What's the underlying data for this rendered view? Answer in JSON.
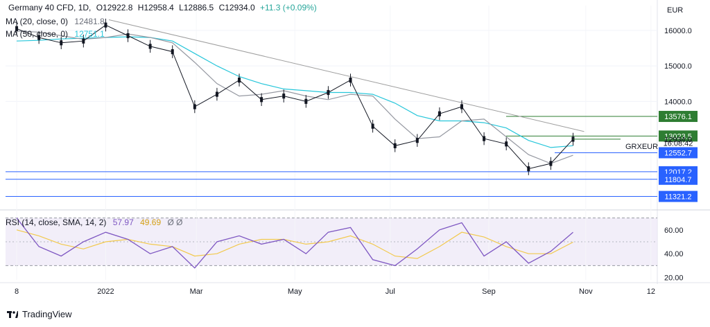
{
  "header": {
    "symbol": "Germany 40 CFD, 1D,",
    "ohlc": [
      "O12922.8",
      "H12958.4",
      "L12886.5",
      "C12934.0",
      "+11.3 (+0.09%)"
    ],
    "ma20_label": "MA (20, close, 0)",
    "ma20_value": "12481.8",
    "ma50_label": "MA (50, close, 0)",
    "ma50_value": "12751.1"
  },
  "currency": "EUR",
  "colors": {
    "up": "#26a69a",
    "down": "#ef5350",
    "candle": "#131722",
    "ma20": "#9598a1",
    "ma50": "#26c6da",
    "trend": "#9e9e9e",
    "support": "#2962ff",
    "resistance": "#2e7d32",
    "rsi": "#7e57c2",
    "rsi_ma": "#f2c94c"
  },
  "price_labels": [
    {
      "text": "13576.1",
      "value": 13576.1,
      "kind": "resistance"
    },
    {
      "text": "13023.5",
      "value": 13023.5,
      "kind": "resistance"
    },
    {
      "text": "12934.0",
      "value": 12934.0,
      "kind": "last"
    },
    {
      "text": "16:08:42",
      "value": 12830.0,
      "kind": "countdown"
    },
    {
      "text": "12552.7",
      "value": 12552.7,
      "kind": "support"
    },
    {
      "text": "12017.2",
      "value": 12017.2,
      "kind": "support"
    },
    {
      "text": "11804.7",
      "value": 11804.7,
      "kind": "support"
    },
    {
      "text": "11321.2",
      "value": 11321.2,
      "kind": "support"
    }
  ],
  "symbol_tag": "GRXEUR",
  "rsi_header": {
    "label": "RSI (14, close, SMA, 14, 2)",
    "value": "57.97",
    "ma_value": "49.69",
    "extra": "Ø Ø"
  },
  "footer": {
    "brand": "TradingView"
  },
  "chart_data": [
    {
      "type": "line",
      "title": "Germany 40 CFD, 1D",
      "ylabel": "EUR",
      "y_ticks": [
        14000.0,
        15000.0,
        16000.0
      ],
      "ylim": [
        11000,
        16700
      ],
      "x_tick_labels": [
        "8",
        "2022",
        "Mar",
        "May",
        "Jul",
        "Sep",
        "Nov",
        "12"
      ],
      "x": [
        "2021-11-08",
        "2021-11-22",
        "2021-12-06",
        "2021-12-20",
        "2022-01-03",
        "2022-01-17",
        "2022-01-31",
        "2022-02-14",
        "2022-02-28",
        "2022-03-14",
        "2022-03-28",
        "2022-04-11",
        "2022-04-25",
        "2022-05-09",
        "2022-05-23",
        "2022-06-06",
        "2022-06-20",
        "2022-07-04",
        "2022-07-18",
        "2022-08-01",
        "2022-08-15",
        "2022-08-29",
        "2022-09-12",
        "2022-09-26",
        "2022-10-10",
        "2022-10-24"
      ],
      "series": [
        {
          "name": "Close",
          "values": [
            16050,
            15800,
            15650,
            15700,
            16150,
            15850,
            15550,
            15400,
            13850,
            14200,
            14600,
            14050,
            14150,
            14000,
            14250,
            14600,
            13300,
            12750,
            12900,
            13650,
            13850,
            12950,
            12800,
            12100,
            12250,
            12934
          ]
        },
        {
          "name": "MA (20, close, 0)",
          "values": [
            15980,
            15950,
            15850,
            15750,
            15800,
            15900,
            15800,
            15650,
            15100,
            14500,
            14150,
            14200,
            14300,
            14150,
            14050,
            14200,
            14150,
            13500,
            12950,
            13000,
            13450,
            13500,
            13000,
            12500,
            12250,
            12481.8
          ]
        },
        {
          "name": "MA (50, close, 0)",
          "values": [
            15700,
            15720,
            15760,
            15780,
            15800,
            15820,
            15800,
            15700,
            15350,
            15000,
            14700,
            14500,
            14350,
            14300,
            14250,
            14250,
            14200,
            13950,
            13600,
            13450,
            13450,
            13400,
            13250,
            12900,
            12700,
            12751.1
          ]
        }
      ],
      "horizontal_levels": [
        13576.1,
        13023.5,
        12552.7,
        12017.2,
        11804.7,
        11321.2
      ],
      "trendline": [
        {
          "x": "2022-01-05",
          "y": 16300
        },
        {
          "x": "2022-10-31",
          "y": 13150
        }
      ],
      "grid": true,
      "last_price": 12934.0
    },
    {
      "type": "line",
      "title": "RSI (14, close, SMA, 14, 2)",
      "y_ticks": [
        20.0,
        40.0,
        60.0
      ],
      "ylim": [
        18,
        75
      ],
      "band": [
        30,
        70
      ],
      "x": [
        "2021-11-08",
        "2021-11-22",
        "2021-12-06",
        "2021-12-20",
        "2022-01-03",
        "2022-01-17",
        "2022-01-31",
        "2022-02-14",
        "2022-02-28",
        "2022-03-14",
        "2022-03-28",
        "2022-04-11",
        "2022-04-25",
        "2022-05-09",
        "2022-05-23",
        "2022-06-06",
        "2022-06-20",
        "2022-07-04",
        "2022-07-18",
        "2022-08-01",
        "2022-08-15",
        "2022-08-29",
        "2022-09-12",
        "2022-09-26",
        "2022-10-10",
        "2022-10-24"
      ],
      "series": [
        {
          "name": "RSI",
          "values": [
            70,
            46,
            38,
            50,
            58,
            52,
            40,
            46,
            28,
            50,
            55,
            48,
            52,
            40,
            58,
            62,
            35,
            30,
            44,
            60,
            66,
            38,
            50,
            32,
            42,
            57.97
          ]
        },
        {
          "name": "RSI-based MA",
          "values": [
            60,
            55,
            48,
            44,
            50,
            52,
            48,
            46,
            38,
            40,
            48,
            52,
            52,
            48,
            50,
            55,
            48,
            38,
            36,
            46,
            58,
            54,
            46,
            40,
            40,
            49.69
          ]
        }
      ],
      "last_value": 57.97
    }
  ]
}
